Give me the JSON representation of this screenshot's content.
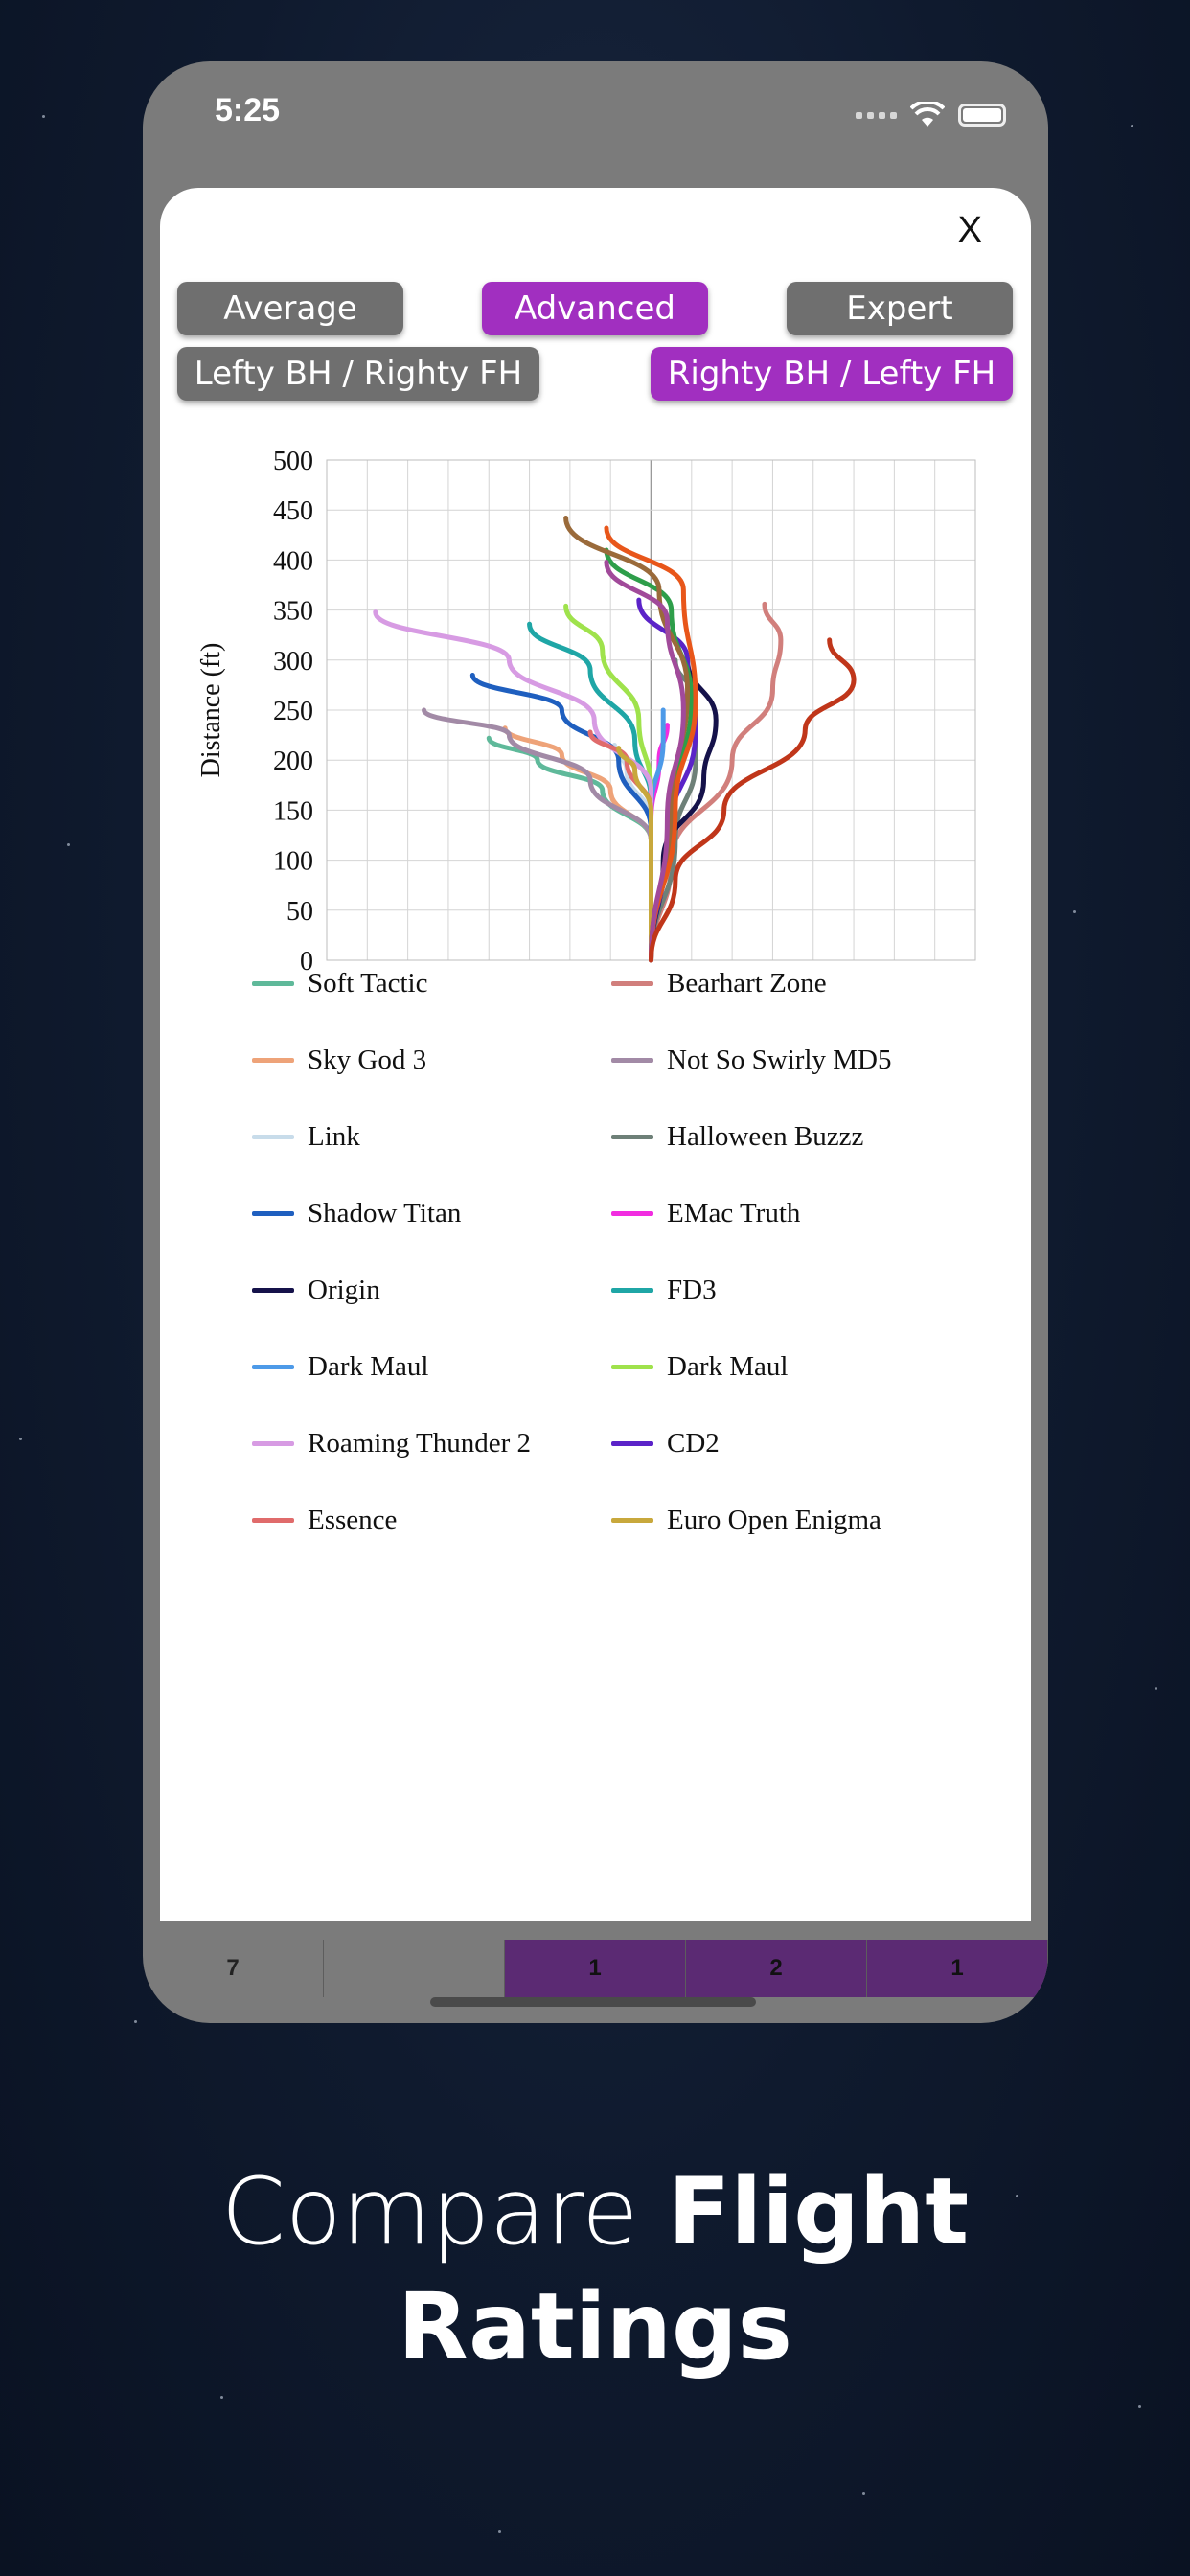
{
  "status_bar": {
    "time": "5:25"
  },
  "modal": {
    "close_label": "X",
    "skill_buttons": [
      {
        "label": "Average",
        "selected": false
      },
      {
        "label": "Advanced",
        "selected": true
      },
      {
        "label": "Expert",
        "selected": false
      }
    ],
    "hand_buttons": [
      {
        "label": "Lefty BH / Righty FH",
        "selected": false
      },
      {
        "label": "Righty BH / Lefty FH",
        "selected": true
      }
    ]
  },
  "background_table": {
    "cells": [
      "7",
      "",
      "1",
      "2",
      "1"
    ]
  },
  "chart_data": {
    "type": "line",
    "ylabel": "Distance (ft)",
    "xlabel": "",
    "ylim": [
      0,
      500
    ],
    "yticks": [
      0,
      50,
      100,
      150,
      200,
      250,
      300,
      350,
      400,
      450,
      500
    ],
    "grid": true,
    "legend_placement": "bottom",
    "series": [
      {
        "name": "Soft Tactic",
        "color": "#5fb99a",
        "points": [
          [
            0,
            0
          ],
          [
            0,
            120
          ],
          [
            -1.2,
            170
          ],
          [
            -2.8,
            200
          ],
          [
            -4,
            222
          ]
        ]
      },
      {
        "name": "Bearhart Zone",
        "color": "#d17f7c",
        "points": [
          [
            0,
            0
          ],
          [
            0.5,
            100
          ],
          [
            2,
            200
          ],
          [
            3,
            270
          ],
          [
            3.2,
            320
          ],
          [
            2.8,
            356
          ]
        ]
      },
      {
        "name": "Sky God 3",
        "color": "#eea379",
        "points": [
          [
            0,
            0
          ],
          [
            0,
            120
          ],
          [
            -1,
            170
          ],
          [
            -2.2,
            205
          ],
          [
            -3.6,
            232
          ]
        ]
      },
      {
        "name": "Not So Swirly MD5",
        "color": "#a28aa6",
        "points": [
          [
            0,
            0
          ],
          [
            0,
            120
          ],
          [
            -1.5,
            180
          ],
          [
            -3.5,
            225
          ],
          [
            -5.6,
            250
          ]
        ]
      },
      {
        "name": "Link",
        "color": "#c8dcea",
        "points": [
          [
            0,
            0
          ],
          [
            0,
            140
          ],
          [
            -0.6,
            190
          ],
          [
            -0.9,
            215
          ]
        ]
      },
      {
        "name": "Halloween Buzzz",
        "color": "#6e8078",
        "points": [
          [
            0,
            0
          ],
          [
            0.6,
            120
          ],
          [
            1.1,
            200
          ],
          [
            1.1,
            260
          ],
          [
            0.6,
            300
          ]
        ]
      },
      {
        "name": "Shadow Titan",
        "color": "#1f5fbf",
        "points": [
          [
            0,
            0
          ],
          [
            0,
            130
          ],
          [
            -0.8,
            200
          ],
          [
            -2.2,
            250
          ],
          [
            -4.4,
            285
          ]
        ]
      },
      {
        "name": "EMac Truth",
        "color": "#f12de0",
        "points": [
          [
            0,
            0
          ],
          [
            0,
            140
          ],
          [
            0.2,
            200
          ],
          [
            0.4,
            235
          ]
        ]
      },
      {
        "name": "Origin",
        "color": "#15124a",
        "points": [
          [
            0,
            0
          ],
          [
            0.3,
            100
          ],
          [
            1.3,
            180
          ],
          [
            1.6,
            240
          ],
          [
            0.9,
            300
          ]
        ]
      },
      {
        "name": "FD3",
        "color": "#1fa6a6",
        "points": [
          [
            0,
            0
          ],
          [
            0,
            160
          ],
          [
            -0.4,
            220
          ],
          [
            -1.5,
            290
          ],
          [
            -3,
            336
          ]
        ]
      },
      {
        "name": "Dark Maul",
        "color": "#4d9ae8",
        "points": [
          [
            0,
            0
          ],
          [
            0,
            150
          ],
          [
            0.3,
            220
          ],
          [
            0.3,
            250
          ]
        ]
      },
      {
        "name": "Dark Maul",
        "color": "#9fe24c",
        "points": [
          [
            0,
            0
          ],
          [
            0,
            170
          ],
          [
            -0.3,
            240
          ],
          [
            -1.2,
            310
          ],
          [
            -2.1,
            354
          ]
        ]
      },
      {
        "name": "Roaming Thunder 2",
        "color": "#d79be3",
        "points": [
          [
            0,
            0
          ],
          [
            0,
            170
          ],
          [
            -1.4,
            240
          ],
          [
            -3.5,
            300
          ],
          [
            -6.8,
            348
          ]
        ]
      },
      {
        "name": "CD2",
        "color": "#5b23c8",
        "points": [
          [
            0,
            0
          ],
          [
            0.4,
            120
          ],
          [
            1.1,
            230
          ],
          [
            0.9,
            300
          ],
          [
            -0.3,
            360
          ]
        ]
      },
      {
        "name": "Essence",
        "color": "#e06b6b",
        "points": [
          [
            0,
            0
          ],
          [
            0,
            150
          ],
          [
            -0.6,
            200
          ],
          [
            -1.5,
            228
          ]
        ]
      },
      {
        "name": "Euro Open Enigma",
        "color": "#c8a83c",
        "points": [
          [
            0,
            0
          ],
          [
            0,
            150
          ],
          [
            -0.4,
            190
          ],
          [
            -0.8,
            212
          ]
        ]
      },
      {
        "name": "",
        "color": "#2e9e4a",
        "points": [
          [
            0,
            0
          ],
          [
            0.5,
            150
          ],
          [
            1,
            260
          ],
          [
            0.5,
            350
          ],
          [
            -1.1,
            410
          ]
        ]
      },
      {
        "name": "",
        "color": "#9a6a3a",
        "points": [
          [
            0,
            0
          ],
          [
            0.5,
            150
          ],
          [
            0.9,
            270
          ],
          [
            0.2,
            370
          ],
          [
            -2.1,
            442
          ]
        ]
      },
      {
        "name": "",
        "color": "#e8561a",
        "points": [
          [
            0,
            0
          ],
          [
            0.6,
            150
          ],
          [
            1.1,
            260
          ],
          [
            0.8,
            370
          ],
          [
            -1.1,
            432
          ]
        ]
      },
      {
        "name": "",
        "color": "#a14a9a",
        "points": [
          [
            0,
            0
          ],
          [
            0.4,
            140
          ],
          [
            0.8,
            250
          ],
          [
            0.4,
            340
          ],
          [
            -1.1,
            398
          ]
        ]
      },
      {
        "name": "",
        "color": "#c0361a",
        "points": [
          [
            0,
            0
          ],
          [
            0.6,
            80
          ],
          [
            1.8,
            150
          ],
          [
            3.8,
            230
          ],
          [
            5,
            280
          ],
          [
            4.4,
            320
          ]
        ]
      }
    ]
  },
  "caption": {
    "light": "Compare ",
    "bold1": "Flight",
    "bold2": "Ratings"
  }
}
